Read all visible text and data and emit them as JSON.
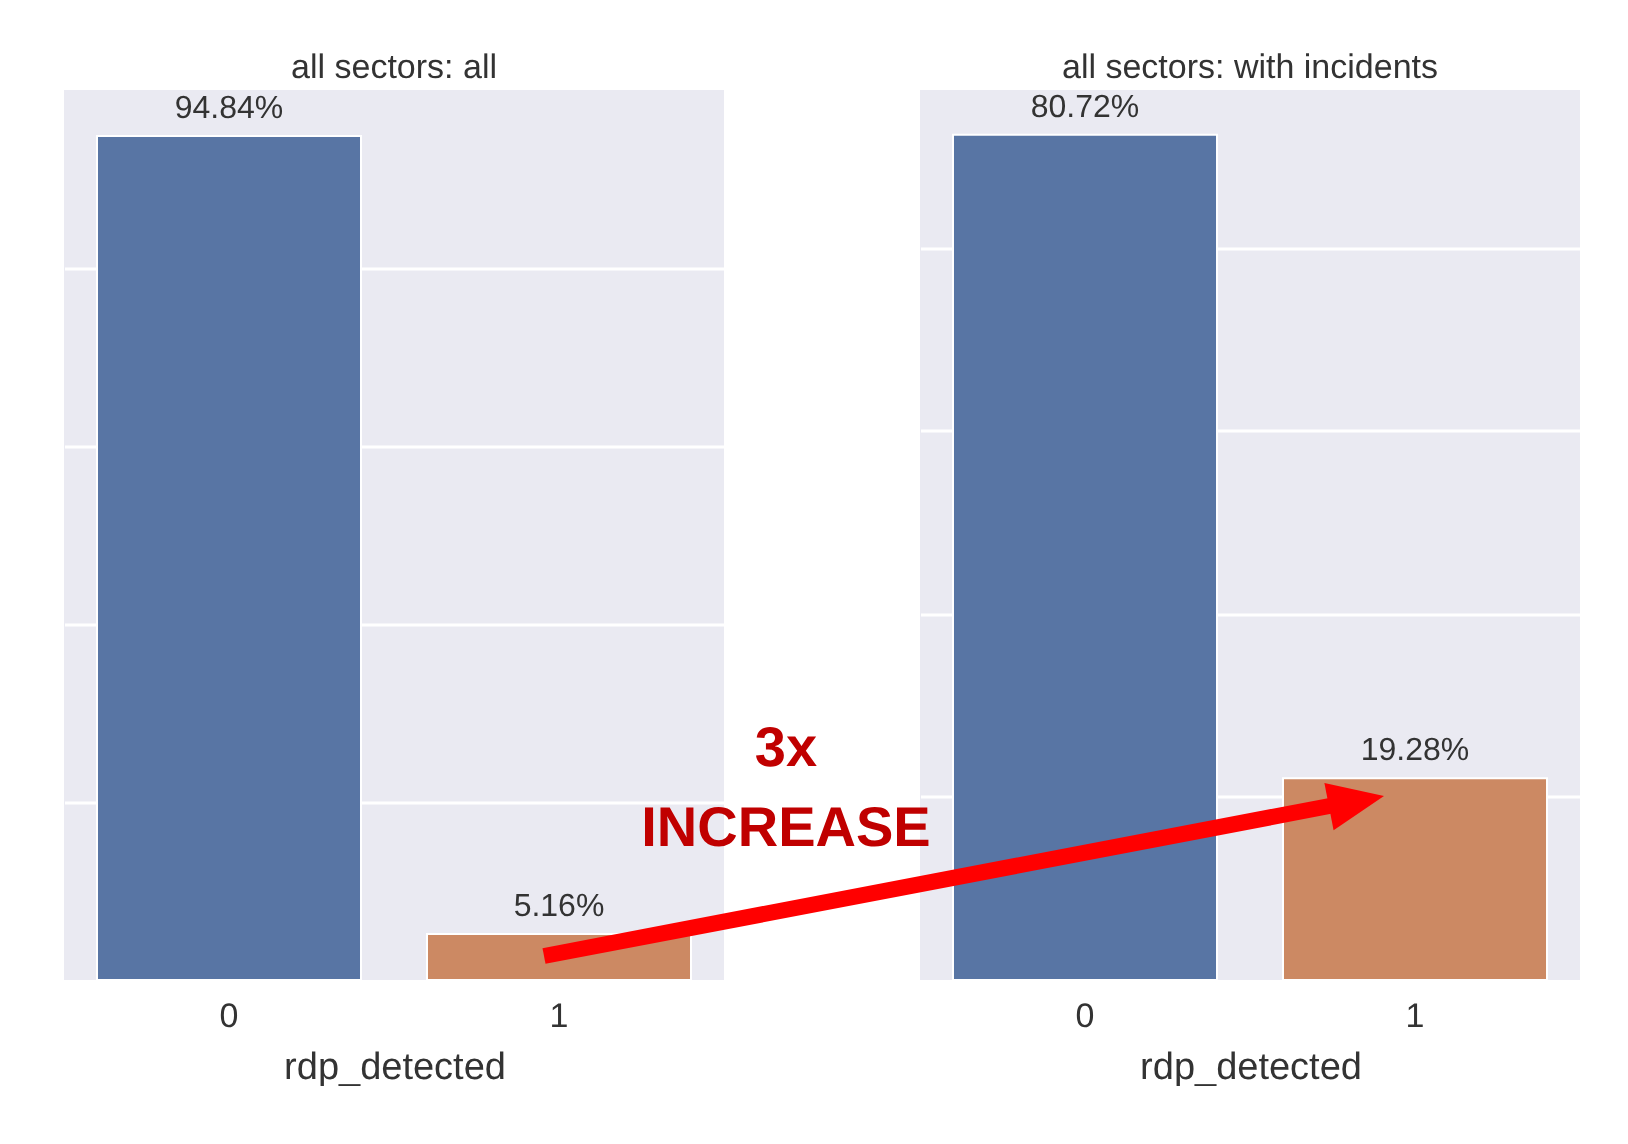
{
  "chart_data": [
    {
      "type": "bar",
      "title": "all sectors: all",
      "xlabel": "rdp_detected",
      "categories": [
        "0",
        "1"
      ],
      "values": [
        94.84,
        5.16
      ],
      "colors": [
        "#5875a4",
        "#cc8963"
      ],
      "value_labels": [
        "94.84%",
        "5.16%"
      ],
      "ylim": [
        0,
        100
      ],
      "yticks": [
        {
          "value": 20,
          "label": null
        },
        {
          "value": 40,
          "label": null
        },
        {
          "value": 60,
          "label": null
        },
        {
          "value": 80,
          "label": null
        }
      ],
      "grid": "y",
      "tick_labels": "x",
      "annotations": [
        "3x INCREASE"
      ]
    },
    {
      "type": "bar",
      "title": "all sectors: with incidents",
      "xlabel": "rdp_detected",
      "categories": [
        "0",
        "1"
      ],
      "values": [
        80.72,
        19.28
      ],
      "colors": [
        "#5875a4",
        "#cc8963"
      ],
      "value_labels": [
        "80.72%",
        "19.28%"
      ],
      "ylim": [
        0,
        85
      ],
      "yticks": [
        {
          "value": 17.5,
          "label": null
        },
        {
          "value": 35,
          "label": null
        },
        {
          "value": 52.5,
          "label": null
        },
        {
          "value": 70,
          "label": null
        }
      ],
      "grid": "y",
      "tick_labels": "x"
    }
  ]
}
